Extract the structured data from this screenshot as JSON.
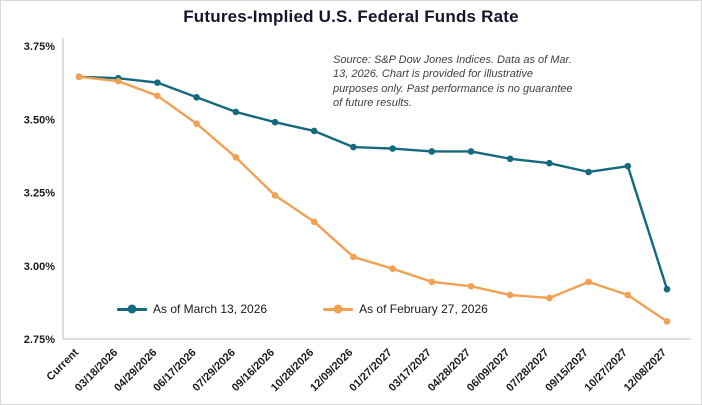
{
  "chart": {
    "title": "Futures-Implied U.S. Federal Funds Rate",
    "source_note": "Source: S&P Dow Jones Indices. Data as of Mar. 13, 2026.  Chart is provided for illustrative purposes only. Past performance is no guarantee of future results."
  },
  "chart_data": {
    "type": "line",
    "title": "Futures-Implied U.S. Federal Funds Rate",
    "categories": [
      "Current",
      "03/18/2026",
      "04/29/2026",
      "06/17/2026",
      "07/29/2026",
      "09/16/2026",
      "10/28/2026",
      "12/09/2026",
      "01/27/2027",
      "03/17/2027",
      "04/28/2027",
      "06/09/2027",
      "07/28/2027",
      "09/15/2027",
      "10/27/2027",
      "12/08/2027"
    ],
    "series": [
      {
        "name": "As of March 13, 2026",
        "color": "#15697E",
        "values": [
          3.645,
          3.64,
          3.625,
          3.575,
          3.525,
          3.49,
          3.46,
          3.405,
          3.4,
          3.39,
          3.39,
          3.365,
          3.35,
          3.32,
          3.34,
          2.92
        ]
      },
      {
        "name": "As of February 27, 2026",
        "color": "#F2A052",
        "values": [
          3.645,
          3.63,
          3.58,
          3.485,
          3.37,
          3.24,
          3.15,
          3.03,
          2.99,
          2.945,
          2.93,
          2.9,
          2.89,
          2.945,
          2.9,
          2.81
        ]
      }
    ],
    "xlabel": "",
    "ylabel": "",
    "ylim": [
      2.75,
      3.75
    ],
    "ytick_values": [
      3.75,
      3.5,
      3.25,
      3.0,
      2.75
    ],
    "ytick_labels": [
      "3.75%",
      "3.50%",
      "3.25%",
      "3.00%",
      "2.75%"
    ],
    "grid": false,
    "legend_position": "inside-bottom-left"
  }
}
